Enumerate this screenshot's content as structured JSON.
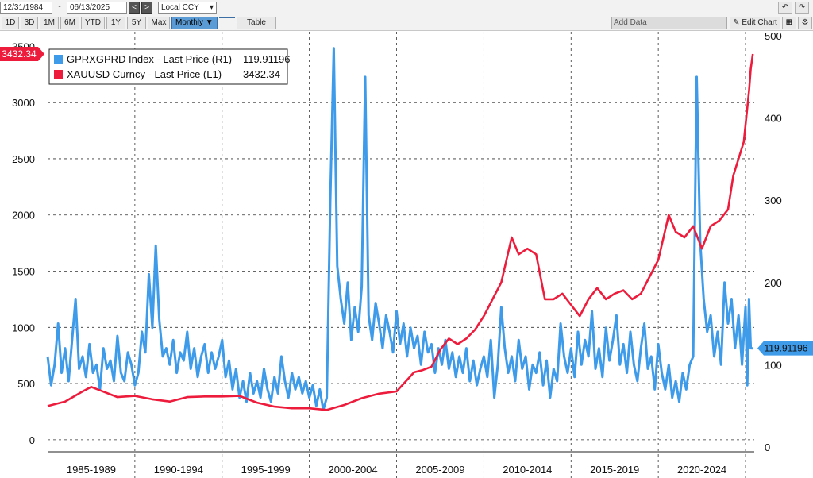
{
  "toolbar": {
    "start_date": "12/31/1984",
    "end_date": "06/13/2025",
    "currency": "Local CCY",
    "periods": [
      "1D",
      "3D",
      "1M",
      "6M",
      "YTD",
      "1Y",
      "5Y",
      "Max"
    ],
    "frequency": "Monthly ▼",
    "table_label": "Table",
    "add_data_label": "Add Data",
    "edit_chart_label": "Edit Chart",
    "prev_icon": "chevron-left-icon",
    "next_icon": "chevron-right-icon",
    "undo_icon": "undo-icon",
    "redo_icon": "redo-icon",
    "settings_icon": "gear-icon"
  },
  "chart_data": {
    "type": "line",
    "legend_position": "top-left",
    "grid": true,
    "x_labels": [
      "1985-1989",
      "1990-1994",
      "1995-1999",
      "2000-2004",
      "2005-2009",
      "2010-2014",
      "2015-2019",
      "2020-2024"
    ],
    "x_range": [
      1985.0,
      2025.5
    ],
    "y_left": {
      "ticks": [
        0,
        500,
        1000,
        1500,
        2000,
        2500,
        3000
      ],
      "top_label": "3500",
      "range": [
        -100,
        3630
      ]
    },
    "y_right": {
      "ticks": [
        0,
        100,
        200,
        300,
        400,
        500
      ],
      "range": [
        -5,
        505
      ]
    },
    "series": [
      {
        "name": "GPRXGPRD Index - Last Price (R1)",
        "legend_value": "119.91196",
        "axis": "right",
        "color": "#3d9be9",
        "last_value_tag": "119.91196",
        "points": [
          [
            1985.0,
            110
          ],
          [
            1985.2,
            75
          ],
          [
            1985.4,
            100
          ],
          [
            1985.6,
            150
          ],
          [
            1985.8,
            90
          ],
          [
            1986.0,
            120
          ],
          [
            1986.2,
            80
          ],
          [
            1986.4,
            130
          ],
          [
            1986.6,
            180
          ],
          [
            1986.8,
            95
          ],
          [
            1987.0,
            110
          ],
          [
            1987.2,
            85
          ],
          [
            1987.4,
            125
          ],
          [
            1987.6,
            90
          ],
          [
            1987.8,
            100
          ],
          [
            1988.0,
            70
          ],
          [
            1988.2,
            120
          ],
          [
            1988.4,
            95
          ],
          [
            1988.6,
            105
          ],
          [
            1988.8,
            80
          ],
          [
            1989.0,
            135
          ],
          [
            1989.2,
            90
          ],
          [
            1989.4,
            80
          ],
          [
            1989.6,
            115
          ],
          [
            1989.8,
            100
          ],
          [
            1990.0,
            75
          ],
          [
            1990.2,
            90
          ],
          [
            1990.4,
            140
          ],
          [
            1990.6,
            115
          ],
          [
            1990.8,
            210
          ],
          [
            1991.0,
            145
          ],
          [
            1991.2,
            245
          ],
          [
            1991.4,
            155
          ],
          [
            1991.6,
            110
          ],
          [
            1991.8,
            120
          ],
          [
            1992.0,
            100
          ],
          [
            1992.2,
            130
          ],
          [
            1992.4,
            90
          ],
          [
            1992.6,
            115
          ],
          [
            1992.8,
            105
          ],
          [
            1993.0,
            140
          ],
          [
            1993.2,
            95
          ],
          [
            1993.4,
            120
          ],
          [
            1993.6,
            85
          ],
          [
            1993.8,
            110
          ],
          [
            1994.0,
            125
          ],
          [
            1994.2,
            90
          ],
          [
            1994.4,
            115
          ],
          [
            1994.6,
            95
          ],
          [
            1994.8,
            110
          ],
          [
            1995.0,
            130
          ],
          [
            1995.2,
            85
          ],
          [
            1995.4,
            105
          ],
          [
            1995.6,
            70
          ],
          [
            1995.8,
            95
          ],
          [
            1996.0,
            60
          ],
          [
            1996.2,
            80
          ],
          [
            1996.4,
            55
          ],
          [
            1996.6,
            90
          ],
          [
            1996.8,
            65
          ],
          [
            1997.0,
            80
          ],
          [
            1997.2,
            60
          ],
          [
            1997.4,
            95
          ],
          [
            1997.6,
            70
          ],
          [
            1997.8,
            55
          ],
          [
            1998.0,
            85
          ],
          [
            1998.2,
            65
          ],
          [
            1998.4,
            110
          ],
          [
            1998.6,
            80
          ],
          [
            1998.8,
            60
          ],
          [
            1999.0,
            90
          ],
          [
            1999.2,
            70
          ],
          [
            1999.4,
            85
          ],
          [
            1999.6,
            65
          ],
          [
            1999.8,
            80
          ],
          [
            2000.0,
            60
          ],
          [
            2000.2,
            75
          ],
          [
            2000.4,
            50
          ],
          [
            2000.6,
            70
          ],
          [
            2000.8,
            45
          ],
          [
            2001.0,
            60
          ],
          [
            2001.2,
            300
          ],
          [
            2001.4,
            485
          ],
          [
            2001.6,
            220
          ],
          [
            2001.8,
            180
          ],
          [
            2002.0,
            150
          ],
          [
            2002.2,
            200
          ],
          [
            2002.4,
            130
          ],
          [
            2002.6,
            170
          ],
          [
            2002.8,
            140
          ],
          [
            2003.0,
            195
          ],
          [
            2003.2,
            450
          ],
          [
            2003.4,
            160
          ],
          [
            2003.6,
            130
          ],
          [
            2003.8,
            175
          ],
          [
            2004.0,
            150
          ],
          [
            2004.2,
            120
          ],
          [
            2004.4,
            160
          ],
          [
            2004.6,
            140
          ],
          [
            2004.8,
            115
          ],
          [
            2005.0,
            165
          ],
          [
            2005.2,
            125
          ],
          [
            2005.4,
            150
          ],
          [
            2005.6,
            110
          ],
          [
            2005.8,
            145
          ],
          [
            2006.0,
            120
          ],
          [
            2006.2,
            135
          ],
          [
            2006.4,
            100
          ],
          [
            2006.6,
            140
          ],
          [
            2006.8,
            115
          ],
          [
            2007.0,
            125
          ],
          [
            2007.2,
            90
          ],
          [
            2007.4,
            120
          ],
          [
            2007.6,
            100
          ],
          [
            2007.8,
            130
          ],
          [
            2008.0,
            95
          ],
          [
            2008.2,
            115
          ],
          [
            2008.4,
            85
          ],
          [
            2008.6,
            110
          ],
          [
            2008.8,
            90
          ],
          [
            2009.0,
            120
          ],
          [
            2009.2,
            80
          ],
          [
            2009.4,
            105
          ],
          [
            2009.6,
            75
          ],
          [
            2009.8,
            95
          ],
          [
            2010.0,
            110
          ],
          [
            2010.2,
            85
          ],
          [
            2010.4,
            130
          ],
          [
            2010.6,
            60
          ],
          [
            2010.8,
            100
          ],
          [
            2011.0,
            170
          ],
          [
            2011.2,
            120
          ],
          [
            2011.4,
            90
          ],
          [
            2011.6,
            110
          ],
          [
            2011.8,
            80
          ],
          [
            2012.0,
            130
          ],
          [
            2012.2,
            95
          ],
          [
            2012.4,
            110
          ],
          [
            2012.6,
            70
          ],
          [
            2012.8,
            100
          ],
          [
            2013.0,
            90
          ],
          [
            2013.2,
            115
          ],
          [
            2013.4,
            75
          ],
          [
            2013.6,
            105
          ],
          [
            2013.8,
            60
          ],
          [
            2014.0,
            95
          ],
          [
            2014.2,
            80
          ],
          [
            2014.4,
            150
          ],
          [
            2014.6,
            110
          ],
          [
            2014.8,
            90
          ],
          [
            2015.0,
            120
          ],
          [
            2015.2,
            85
          ],
          [
            2015.4,
            140
          ],
          [
            2015.6,
            100
          ],
          [
            2015.8,
            130
          ],
          [
            2016.0,
            110
          ],
          [
            2016.2,
            165
          ],
          [
            2016.4,
            95
          ],
          [
            2016.6,
            120
          ],
          [
            2016.8,
            85
          ],
          [
            2017.0,
            145
          ],
          [
            2017.2,
            105
          ],
          [
            2017.4,
            130
          ],
          [
            2017.6,
            160
          ],
          [
            2017.8,
            100
          ],
          [
            2018.0,
            125
          ],
          [
            2018.2,
            90
          ],
          [
            2018.4,
            140
          ],
          [
            2018.6,
            100
          ],
          [
            2018.8,
            80
          ],
          [
            2019.0,
            120
          ],
          [
            2019.2,
            150
          ],
          [
            2019.4,
            95
          ],
          [
            2019.6,
            110
          ],
          [
            2019.8,
            70
          ],
          [
            2020.0,
            125
          ],
          [
            2020.2,
            90
          ],
          [
            2020.4,
            70
          ],
          [
            2020.6,
            100
          ],
          [
            2020.8,
            60
          ],
          [
            2021.0,
            80
          ],
          [
            2021.2,
            55
          ],
          [
            2021.4,
            90
          ],
          [
            2021.6,
            70
          ],
          [
            2021.8,
            100
          ],
          [
            2022.0,
            110
          ],
          [
            2022.2,
            450
          ],
          [
            2022.4,
            250
          ],
          [
            2022.6,
            180
          ],
          [
            2022.8,
            140
          ],
          [
            2023.0,
            160
          ],
          [
            2023.2,
            110
          ],
          [
            2023.4,
            140
          ],
          [
            2023.6,
            100
          ],
          [
            2023.8,
            200
          ],
          [
            2024.0,
            150
          ],
          [
            2024.2,
            180
          ],
          [
            2024.4,
            120
          ],
          [
            2024.6,
            160
          ],
          [
            2024.8,
            100
          ],
          [
            2025.0,
            170
          ],
          [
            2025.1,
            75
          ],
          [
            2025.2,
            180
          ],
          [
            2025.3,
            120
          ],
          [
            2025.42,
            119.91
          ]
        ]
      },
      {
        "name": "XAUUSD Curncy - Last Price (L1)",
        "legend_value": "3432.34",
        "axis": "left",
        "color": "#ee1c3c",
        "last_value_tag": "3432.34",
        "points": [
          [
            1985.0,
            300
          ],
          [
            1986.0,
            340
          ],
          [
            1987.0,
            430
          ],
          [
            1987.5,
            470
          ],
          [
            1988.0,
            440
          ],
          [
            1989.0,
            380
          ],
          [
            1990.0,
            390
          ],
          [
            1991.0,
            360
          ],
          [
            1992.0,
            340
          ],
          [
            1993.0,
            380
          ],
          [
            1994.0,
            385
          ],
          [
            1995.0,
            385
          ],
          [
            1996.0,
            390
          ],
          [
            1997.0,
            330
          ],
          [
            1998.0,
            295
          ],
          [
            1999.0,
            280
          ],
          [
            2000.0,
            280
          ],
          [
            2001.0,
            265
          ],
          [
            2002.0,
            310
          ],
          [
            2003.0,
            370
          ],
          [
            2004.0,
            410
          ],
          [
            2005.0,
            430
          ],
          [
            2006.0,
            600
          ],
          [
            2006.5,
            620
          ],
          [
            2007.0,
            650
          ],
          [
            2007.5,
            800
          ],
          [
            2008.0,
            900
          ],
          [
            2008.5,
            850
          ],
          [
            2009.0,
            900
          ],
          [
            2009.5,
            980
          ],
          [
            2010.0,
            1100
          ],
          [
            2010.5,
            1250
          ],
          [
            2011.0,
            1400
          ],
          [
            2011.6,
            1800
          ],
          [
            2012.0,
            1650
          ],
          [
            2012.5,
            1700
          ],
          [
            2013.0,
            1650
          ],
          [
            2013.5,
            1250
          ],
          [
            2014.0,
            1250
          ],
          [
            2014.5,
            1300
          ],
          [
            2015.0,
            1200
          ],
          [
            2015.5,
            1100
          ],
          [
            2016.0,
            1250
          ],
          [
            2016.5,
            1350
          ],
          [
            2017.0,
            1250
          ],
          [
            2017.5,
            1300
          ],
          [
            2018.0,
            1330
          ],
          [
            2018.5,
            1250
          ],
          [
            2019.0,
            1300
          ],
          [
            2019.5,
            1450
          ],
          [
            2020.0,
            1600
          ],
          [
            2020.6,
            2000
          ],
          [
            2021.0,
            1850
          ],
          [
            2021.5,
            1800
          ],
          [
            2022.0,
            1900
          ],
          [
            2022.5,
            1700
          ],
          [
            2023.0,
            1900
          ],
          [
            2023.5,
            1950
          ],
          [
            2024.0,
            2050
          ],
          [
            2024.3,
            2350
          ],
          [
            2024.6,
            2500
          ],
          [
            2024.9,
            2650
          ],
          [
            2025.0,
            2800
          ],
          [
            2025.2,
            3100
          ],
          [
            2025.3,
            3300
          ],
          [
            2025.42,
            3432.34
          ]
        ]
      }
    ]
  }
}
